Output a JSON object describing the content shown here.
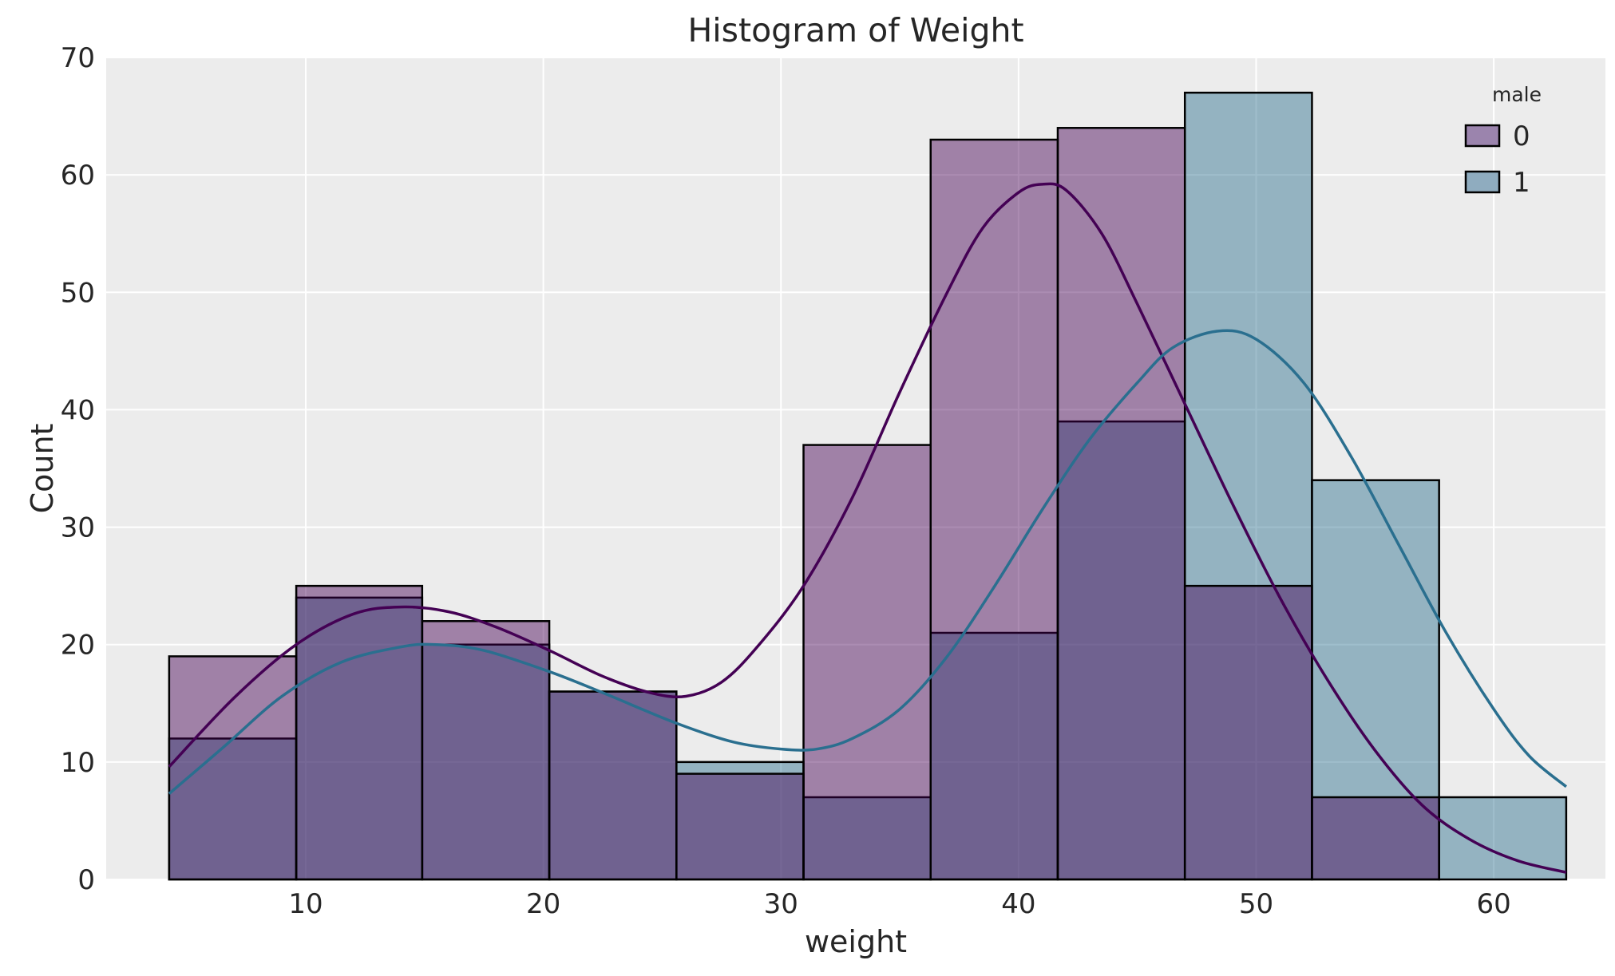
{
  "chart_data": {
    "type": "bar",
    "subtype": "histogram-with-kde",
    "title": "Histogram of Weight",
    "xlabel": "weight",
    "ylabel": "Count",
    "xlim": [
      1.6,
      64.7
    ],
    "ylim": [
      0,
      70
    ],
    "xticks": [
      10,
      20,
      30,
      40,
      50,
      60
    ],
    "yticks": [
      0,
      10,
      20,
      30,
      40,
      50,
      60,
      70
    ],
    "grid": true,
    "legend": {
      "title": "male",
      "placement": "top-right",
      "entries": [
        "0",
        "1"
      ]
    },
    "bin_edges": [
      4.25,
      9.6,
      14.9,
      20.25,
      25.6,
      30.95,
      36.3,
      41.65,
      47.0,
      52.35,
      57.7,
      63.05
    ],
    "series": [
      {
        "name": "0",
        "color": "#440154",
        "fill_color": "#9b84ad",
        "values": [
          19,
          25,
          22,
          16,
          9,
          37,
          63,
          64,
          25,
          7,
          0
        ],
        "kde": [
          [
            4.25,
            9.6
          ],
          [
            7.0,
            15.5
          ],
          [
            9.6,
            20.0
          ],
          [
            12.0,
            22.6
          ],
          [
            14.0,
            23.2
          ],
          [
            16.0,
            22.8
          ],
          [
            18.0,
            21.5
          ],
          [
            20.25,
            19.5
          ],
          [
            22.5,
            17.3
          ],
          [
            24.5,
            15.9
          ],
          [
            26.0,
            15.6
          ],
          [
            27.5,
            16.8
          ],
          [
            29.0,
            19.8
          ],
          [
            30.95,
            25.0
          ],
          [
            33.0,
            32.5
          ],
          [
            35.0,
            41.5
          ],
          [
            37.0,
            50.0
          ],
          [
            38.5,
            55.5
          ],
          [
            40.0,
            58.5
          ],
          [
            41.0,
            59.2
          ],
          [
            42.0,
            58.7
          ],
          [
            43.5,
            55.0
          ],
          [
            45.0,
            49.0
          ],
          [
            47.0,
            40.5
          ],
          [
            49.0,
            32.0
          ],
          [
            51.0,
            24.0
          ],
          [
            53.0,
            17.0
          ],
          [
            55.0,
            11.0
          ],
          [
            57.0,
            6.3
          ],
          [
            59.0,
            3.4
          ],
          [
            61.0,
            1.6
          ],
          [
            63.05,
            0.6
          ]
        ]
      },
      {
        "name": "1",
        "color": "#2a6f8f",
        "fill_color": "#8facbf",
        "values": [
          12,
          24,
          20,
          16,
          10,
          7,
          21,
          39,
          67,
          34,
          7
        ],
        "kde": [
          [
            4.25,
            7.3
          ],
          [
            6.5,
            11.2
          ],
          [
            9.0,
            15.6
          ],
          [
            11.5,
            18.5
          ],
          [
            14.0,
            19.8
          ],
          [
            15.5,
            20.0
          ],
          [
            17.5,
            19.5
          ],
          [
            20.25,
            17.7
          ],
          [
            22.5,
            15.9
          ],
          [
            25.6,
            13.3
          ],
          [
            28.0,
            11.7
          ],
          [
            30.0,
            11.1
          ],
          [
            31.5,
            11.1
          ],
          [
            33.0,
            12.0
          ],
          [
            35.0,
            14.5
          ],
          [
            37.0,
            19.0
          ],
          [
            39.0,
            25.0
          ],
          [
            41.0,
            31.5
          ],
          [
            43.0,
            37.5
          ],
          [
            45.0,
            42.3
          ],
          [
            46.5,
            45.3
          ],
          [
            48.4,
            46.7
          ],
          [
            50.0,
            46.0
          ],
          [
            52.0,
            42.3
          ],
          [
            54.0,
            36.0
          ],
          [
            56.0,
            28.5
          ],
          [
            58.0,
            21.0
          ],
          [
            60.0,
            14.5
          ],
          [
            61.5,
            10.5
          ],
          [
            63.05,
            7.9
          ]
        ]
      }
    ]
  }
}
